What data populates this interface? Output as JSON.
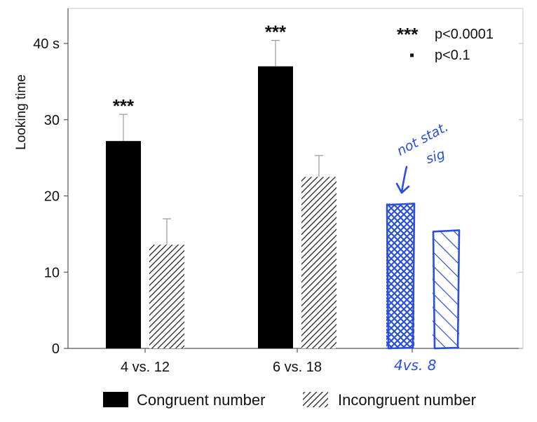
{
  "chart_data": {
    "type": "bar",
    "ylabel": "Looking time",
    "ylim": [
      0,
      45
    ],
    "yticks": [
      {
        "value": 0,
        "label": "0"
      },
      {
        "value": 10,
        "label": "10"
      },
      {
        "value": 20,
        "label": "20"
      },
      {
        "value": 30,
        "label": "30"
      },
      {
        "value": 40,
        "label": "40 s"
      }
    ],
    "categories": [
      "4 vs. 12",
      "6 vs. 18"
    ],
    "series": [
      {
        "name": "Congruent number",
        "fill": "solid",
        "color": "#000000",
        "values": [
          27.2,
          37.0
        ],
        "errors": [
          3.5,
          3.4
        ]
      },
      {
        "name": "Incongruent number",
        "fill": "hatched",
        "color": "#000000",
        "values": [
          13.6,
          22.5
        ],
        "errors": [
          3.4,
          2.8
        ]
      }
    ],
    "significance": [
      "***",
      "***"
    ],
    "significance_key": [
      {
        "symbol": "***",
        "label": "p<0.0001"
      },
      {
        "symbol": "▪",
        "label": "p<0.1"
      }
    ],
    "grid": false,
    "legend": "bottom",
    "handwritten_annotation": {
      "category": "4vs. 8",
      "note": [
        "not stat.",
        "sig"
      ],
      "color": "#2a4fe0",
      "values": [
        19,
        15.5
      ]
    }
  }
}
